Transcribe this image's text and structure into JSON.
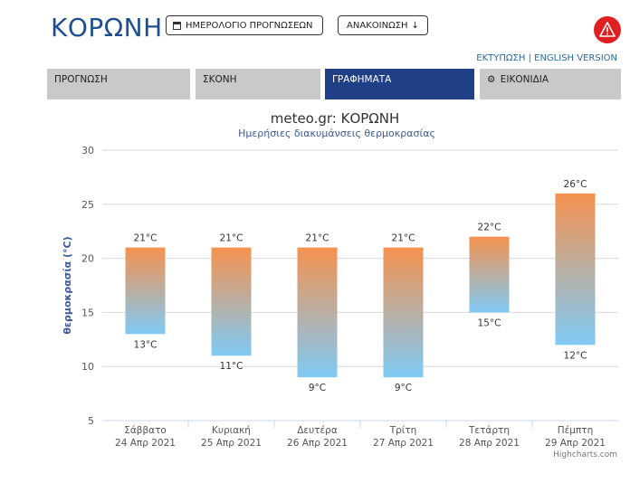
{
  "header": {
    "title": "ΚΟΡΩΝΗ",
    "calendar_button": "ΗΜΕΡΟΛΟΓΙΟ ΠΡΟΓΝΩΣΕΩΝ",
    "announcement_button": "ΑΝΑΚΟΙΝΩΣΗ",
    "print_link": "ΕΚΤΥΠΩΣΗ",
    "separator": "|",
    "english_link": "ENGLISH VERSION"
  },
  "tabs": [
    {
      "label": "ΠΡΟΓΝΩΣΗ",
      "active": false
    },
    {
      "label": "ΣΚΟΝΗ",
      "active": false
    },
    {
      "label": "ΓΡΑΦΗΜΑΤΑ",
      "active": true
    },
    {
      "label": "ΕΙΚΟΝΙΔΙΑ",
      "active": false
    }
  ],
  "colors": {
    "brand_blue": "#1f4f8f",
    "active_tab": "#1f3f86",
    "bar_top": "#f5924f",
    "bar_bottom": "#7fcaf5",
    "alert_red": "#e02020"
  },
  "chart_data": {
    "type": "bar",
    "subtype": "columnrange",
    "title": "meteo.gr: ΚΟΡΩΝΗ",
    "subtitle": "Ημερήσιες διακυμάνσεις θερμοκρασίας",
    "ylabel": "θερμοκρασία (°C)",
    "xlabel": "",
    "ylim": [
      5,
      30
    ],
    "yticks": [
      5,
      10,
      15,
      20,
      25,
      30
    ],
    "grid": true,
    "unit": "°C",
    "categories": [
      {
        "day": "Σάββατο",
        "date": "24 Απρ 2021"
      },
      {
        "day": "Κυριακή",
        "date": "25 Απρ 2021"
      },
      {
        "day": "Δευτέρα",
        "date": "26 Απρ 2021"
      },
      {
        "day": "Τρίτη",
        "date": "27 Απρ 2021"
      },
      {
        "day": "Τετάρτη",
        "date": "28 Απρ 2021"
      },
      {
        "day": "Πέμπτη",
        "date": "29 Απρ 2021"
      }
    ],
    "low": [
      13,
      11,
      9,
      9,
      15,
      12
    ],
    "high": [
      21,
      21,
      21,
      21,
      22,
      26
    ],
    "credits": "Highcharts.com"
  }
}
